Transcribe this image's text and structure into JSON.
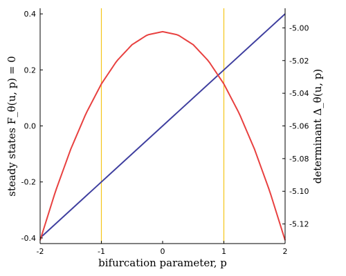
{
  "chart_data": {
    "type": "line",
    "xlabel": "bifurcation parameter, p",
    "ylabel_left": "steady states  F_θ(u, p) = 0",
    "ylabel_right": "determinant  Δ_θ(u, p)",
    "xlim": [
      -2,
      2
    ],
    "ylim_left": [
      -0.42,
      0.42
    ],
    "ylim_right": [
      -5.132,
      -4.988
    ],
    "x_ticks": [
      -2,
      -1,
      0,
      1,
      2
    ],
    "x_tick_labels": [
      "-2",
      "-1",
      "0",
      "1",
      "2"
    ],
    "y_left_ticks": [
      -0.4,
      -0.2,
      0.0,
      0.2,
      0.4
    ],
    "y_left_tick_labels": [
      "-0.4",
      "-0.2",
      "0.0",
      "0.2",
      "0.4"
    ],
    "y_right_ticks": [
      -5.12,
      -5.1,
      -5.08,
      -5.06,
      -5.04,
      -5.02,
      -5.0
    ],
    "y_right_tick_labels": [
      "-5.12",
      "-5.10",
      "-5.08",
      "-5.06",
      "-5.04",
      "-5.02",
      "-5.00"
    ],
    "vertical_lines": [
      -1,
      1
    ],
    "grid": false,
    "series": [
      {
        "axis": "left",
        "color": "#3f3f9f",
        "x": [
          -2,
          -1,
          0,
          1,
          2
        ],
        "y": [
          -0.4,
          -0.2,
          0.0,
          0.2,
          0.4
        ]
      },
      {
        "axis": "right",
        "color": "#e8403f",
        "x": [
          -2,
          -1.75,
          -1.5,
          -1.25,
          -1,
          -0.75,
          -0.5,
          -0.25,
          0,
          0.25,
          0.5,
          0.75,
          1,
          1.25,
          1.5,
          1.75,
          2
        ],
        "y": [
          -5.13,
          -5.1001,
          -5.0742,
          -5.0523,
          -5.0343,
          -5.0203,
          -5.0103,
          -5.0043,
          -5.0023,
          -5.0043,
          -5.0103,
          -5.0203,
          -5.0343,
          -5.0523,
          -5.0742,
          -5.1001,
          -5.13
        ]
      }
    ],
    "colors": {
      "vertical_line": "#f5c518"
    }
  }
}
